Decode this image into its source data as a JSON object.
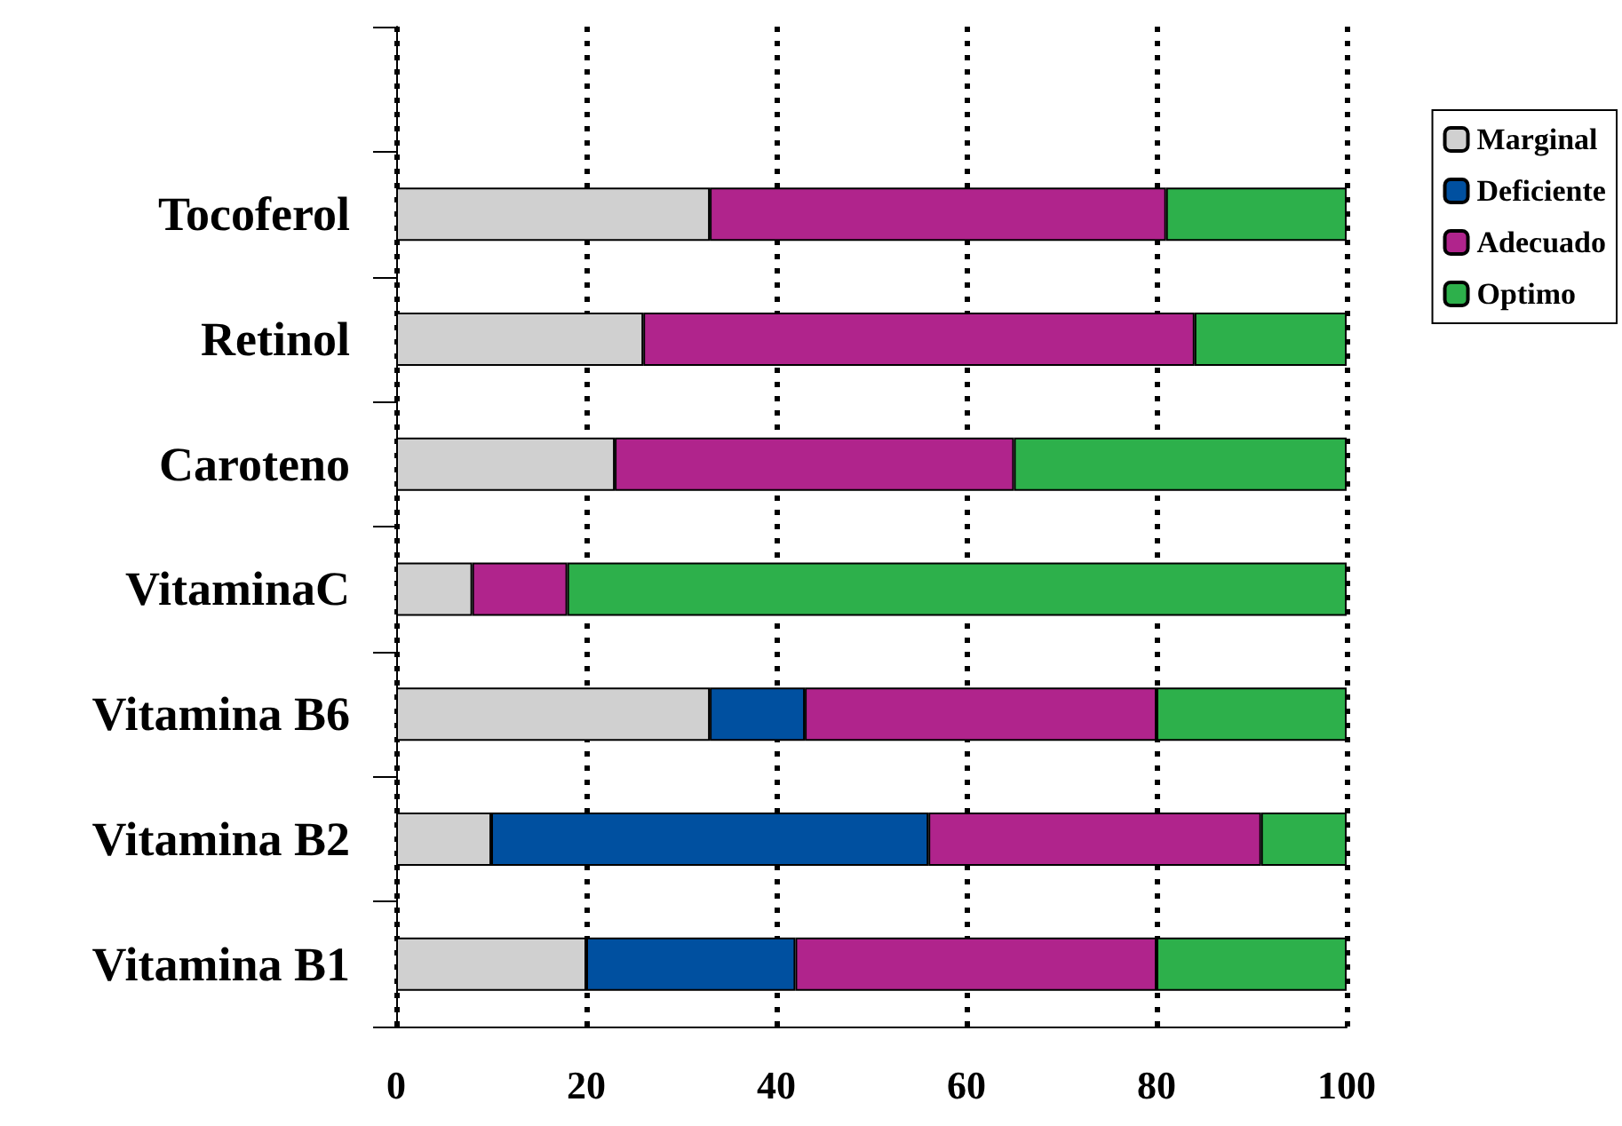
{
  "chart_data": {
    "type": "bar",
    "orientation": "horizontal",
    "stacked": true,
    "categories": [
      null,
      "Tocoferol",
      "Retinol",
      "Caroteno",
      "VitaminaC",
      "Vitamina B6",
      "Vitamina B2",
      "Vitamina B1"
    ],
    "series": [
      {
        "name": "Marginal",
        "color": "#d0d0d0",
        "values": [
          null,
          33,
          26,
          23,
          8,
          33,
          10,
          20
        ]
      },
      {
        "name": "Deficiente",
        "color": "#0050a0",
        "values": [
          null,
          null,
          null,
          null,
          null,
          10,
          46,
          22
        ]
      },
      {
        "name": "Adecuado",
        "color": "#b0248c",
        "values": [
          null,
          48,
          58,
          42,
          10,
          37,
          35,
          38
        ]
      },
      {
        "name": "Optimo",
        "color": "#2db04b",
        "values": [
          null,
          19,
          16,
          35,
          82,
          20,
          9,
          20
        ]
      }
    ],
    "xlim": [
      0,
      100
    ],
    "xticks": [
      0,
      20,
      40,
      60,
      80,
      100
    ],
    "grid": "x",
    "legend": "top right"
  }
}
